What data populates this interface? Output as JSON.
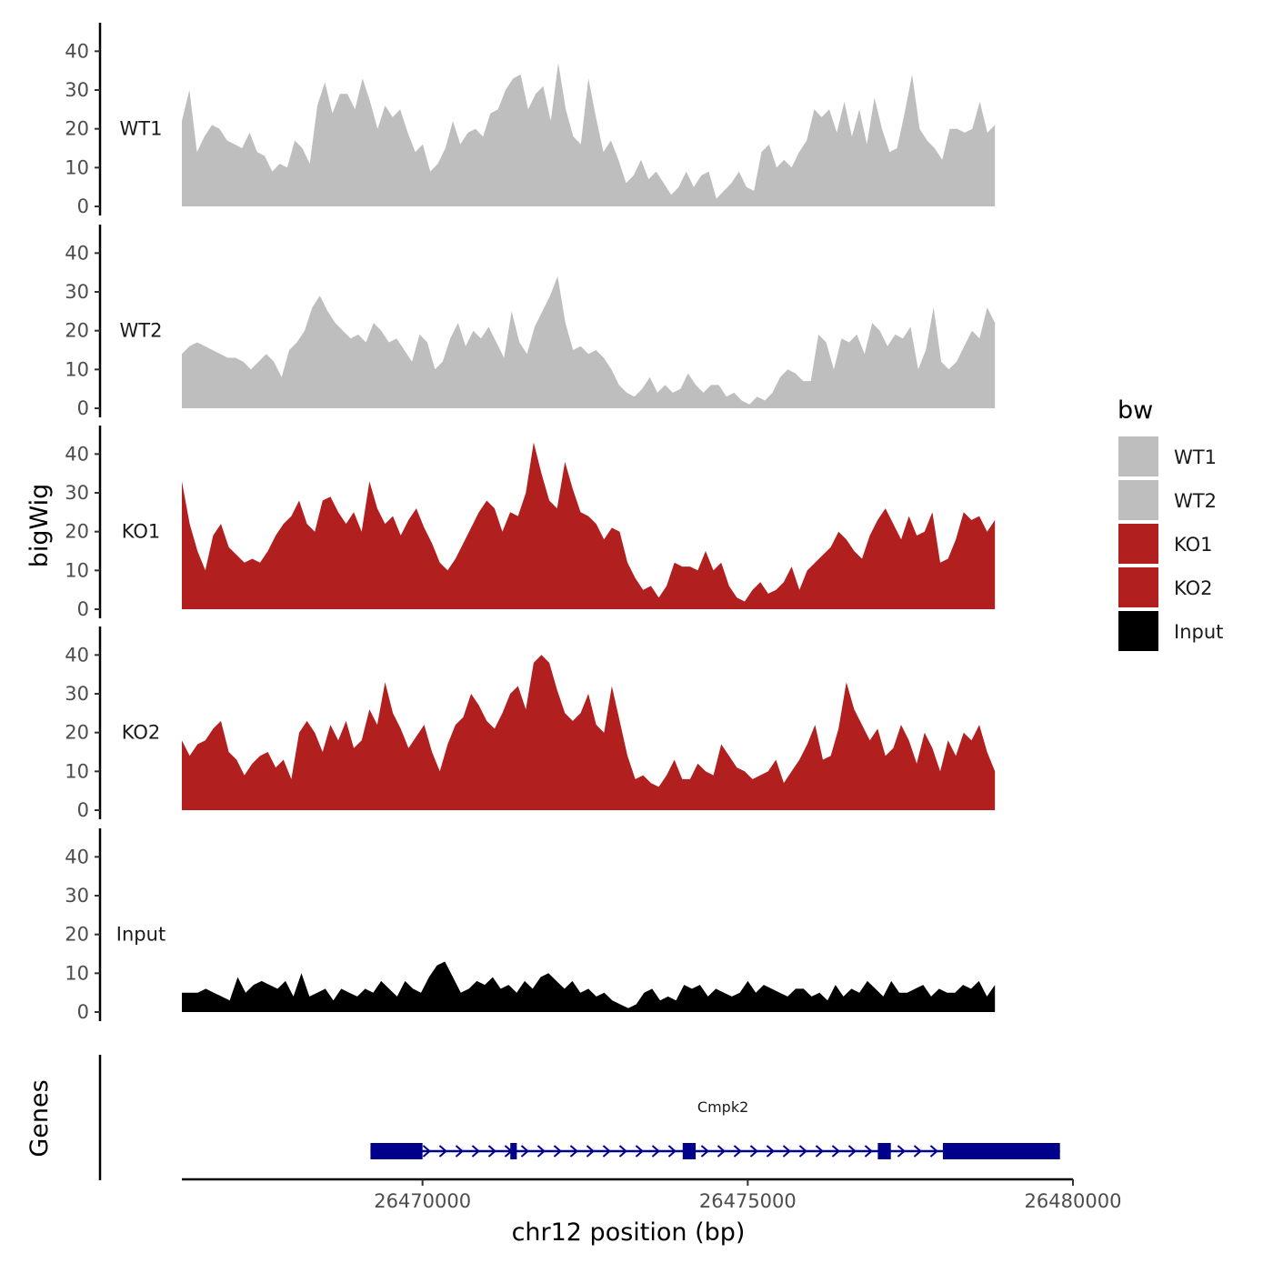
{
  "chart_data": {
    "type": "area",
    "xlabel": "chr12 position (bp)",
    "ylabel": "bigWig",
    "genes_label": "Genes",
    "xlim": [
      26466300,
      26480000
    ],
    "x_ticks": [
      26470000,
      26475000,
      26480000
    ],
    "x_tick_labels": [
      "26470000",
      "26475000",
      "26480000"
    ],
    "ylim": [
      0,
      45
    ],
    "y_ticks": [
      0,
      10,
      20,
      30,
      40
    ],
    "y_tick_labels": [
      "0",
      "10",
      "20",
      "30",
      "40"
    ],
    "legend": {
      "title": "bw",
      "position": "right"
    },
    "series": [
      {
        "name": "WT1",
        "color": "#bebebe",
        "x_start": 26466300,
        "x_end": 26478800,
        "values": [
          22,
          30,
          14,
          18,
          21,
          20,
          17,
          16,
          15,
          19,
          14,
          13,
          9,
          11,
          10,
          17,
          15,
          11,
          26,
          32,
          24,
          29,
          29,
          25,
          33,
          27,
          20,
          26,
          23,
          25,
          19,
          14,
          16,
          9,
          11,
          15,
          22,
          16,
          19,
          20,
          18,
          24,
          25,
          30,
          33,
          34,
          25,
          29,
          31,
          22,
          37,
          25,
          18,
          16,
          33,
          23,
          14,
          17,
          12,
          6,
          8,
          12,
          7,
          9,
          6,
          3,
          5,
          9,
          5,
          8,
          9,
          2,
          4,
          6,
          9,
          5,
          4,
          14,
          16,
          10,
          12,
          10,
          14,
          17,
          25,
          23,
          25,
          19,
          27,
          18,
          25,
          16,
          28,
          20,
          14,
          15,
          24,
          34,
          20,
          17,
          15,
          12,
          20,
          20,
          19,
          20,
          27,
          19,
          21
        ]
      },
      {
        "name": "WT2",
        "color": "#bebebe",
        "x_start": 26466300,
        "x_end": 26478800,
        "values": [
          14,
          16,
          17,
          16,
          15,
          14,
          13,
          13,
          12,
          10,
          12,
          14,
          12,
          8,
          15,
          17,
          20,
          26,
          29,
          25,
          22,
          20,
          18,
          19,
          17,
          22,
          20,
          17,
          18,
          15,
          12,
          19,
          17,
          10,
          12,
          18,
          22,
          16,
          20,
          18,
          21,
          17,
          13,
          25,
          17,
          14,
          21,
          25,
          29,
          34,
          22,
          15,
          16,
          14,
          15,
          13,
          10,
          6,
          4,
          3,
          5,
          8,
          4,
          6,
          4,
          5,
          9,
          6,
          4,
          6,
          6,
          3,
          4,
          2,
          1,
          3,
          2,
          4,
          8,
          10,
          9,
          7,
          7,
          19,
          17,
          10,
          18,
          17,
          19,
          14,
          22,
          20,
          16,
          19,
          18,
          21,
          10,
          15,
          26,
          12,
          10,
          12,
          16,
          20,
          18,
          26,
          22
        ]
      },
      {
        "name": "KO1",
        "color": "#b21f1f",
        "x_start": 26466300,
        "x_end": 26478800,
        "values": [
          33,
          22,
          15,
          10,
          19,
          22,
          16,
          14,
          12,
          13,
          12,
          15,
          19,
          22,
          24,
          28,
          22,
          20,
          28,
          29,
          25,
          22,
          25,
          20,
          33,
          26,
          22,
          24,
          19,
          23,
          26,
          21,
          17,
          12,
          10,
          13,
          17,
          21,
          25,
          28,
          26,
          20,
          25,
          24,
          30,
          43,
          35,
          28,
          26,
          38,
          31,
          25,
          24,
          22,
          18,
          21,
          20,
          12,
          8,
          5,
          6,
          3,
          6,
          12,
          11,
          11,
          10,
          15,
          10,
          12,
          6,
          3,
          2,
          5,
          7,
          4,
          5,
          7,
          11,
          5,
          10,
          12,
          14,
          16,
          20,
          18,
          15,
          13,
          19,
          23,
          26,
          22,
          18,
          24,
          19,
          20,
          25,
          12,
          13,
          18,
          25,
          23,
          24,
          20,
          23
        ]
      },
      {
        "name": "KO2",
        "color": "#b21f1f",
        "x_start": 26466300,
        "x_end": 26478800,
        "values": [
          18,
          14,
          17,
          18,
          21,
          23,
          15,
          13,
          9,
          12,
          14,
          15,
          11,
          13,
          8,
          20,
          23,
          20,
          15,
          22,
          18,
          23,
          16,
          18,
          26,
          22,
          33,
          25,
          21,
          16,
          19,
          22,
          15,
          10,
          17,
          22,
          24,
          30,
          27,
          23,
          21,
          25,
          30,
          32,
          26,
          38,
          40,
          38,
          31,
          25,
          23,
          25,
          30,
          22,
          20,
          32,
          23,
          14,
          8,
          9,
          7,
          6,
          9,
          13,
          8,
          8,
          12,
          10,
          9,
          17,
          14,
          11,
          10,
          8,
          9,
          10,
          13,
          7,
          10,
          13,
          17,
          22,
          13,
          14,
          21,
          33,
          26,
          22,
          18,
          21,
          14,
          16,
          22,
          18,
          12,
          20,
          16,
          10,
          18,
          14,
          20,
          18,
          22,
          15,
          10
        ]
      },
      {
        "name": "Input",
        "color": "#000000",
        "x_start": 26466300,
        "x_end": 26478800,
        "values": [
          5,
          5,
          5,
          6,
          5,
          4,
          3,
          9,
          5,
          7,
          8,
          7,
          6,
          8,
          4,
          10,
          4,
          5,
          6,
          3,
          6,
          5,
          4,
          6,
          5,
          8,
          6,
          4,
          8,
          6,
          5,
          9,
          12,
          13,
          9,
          5,
          6,
          8,
          7,
          9,
          6,
          7,
          5,
          8,
          6,
          9,
          10,
          8,
          6,
          8,
          5,
          6,
          4,
          5,
          3,
          2,
          1,
          2,
          5,
          6,
          3,
          4,
          3,
          7,
          6,
          7,
          4,
          6,
          5,
          4,
          5,
          8,
          5,
          7,
          6,
          5,
          4,
          6,
          6,
          4,
          5,
          3,
          7,
          4,
          6,
          5,
          8,
          6,
          4,
          8,
          5,
          5,
          6,
          7,
          4,
          6,
          5,
          5,
          7,
          6,
          8,
          4,
          7
        ]
      }
    ],
    "genes": [
      {
        "name": "Cmpk2",
        "strand": "+",
        "start": 26469200,
        "end": 26479800,
        "exons": [
          [
            26469200,
            26470000
          ],
          [
            26471350,
            26471450
          ],
          [
            26474000,
            26474200
          ],
          [
            26477000,
            26477200
          ],
          [
            26478000,
            26479800
          ]
        ]
      }
    ]
  }
}
